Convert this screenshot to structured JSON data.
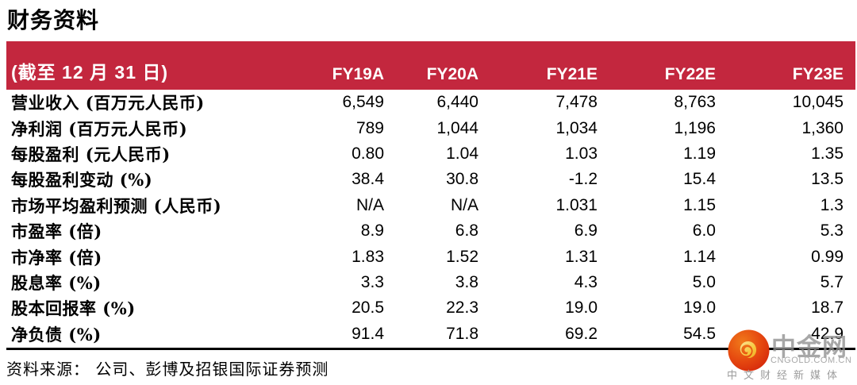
{
  "page": {
    "title": "财务资料",
    "source_note": "资料来源：  公司、彭博及招银国际证券预测"
  },
  "table": {
    "header": {
      "label": "(截至 12 月 31 日)",
      "columns": [
        "FY19A",
        "FY20A",
        "FY21E",
        "FY22E",
        "FY23E"
      ]
    },
    "rows": [
      {
        "label": "营业收入 (百万元人民币)",
        "values": [
          "6,549",
          "6,440",
          "7,478",
          "8,763",
          "10,045"
        ]
      },
      {
        "label": "净利润 (百万元人民币)",
        "values": [
          "789",
          "1,044",
          "1,034",
          "1,196",
          "1,360"
        ]
      },
      {
        "label": "每股盈利 (元人民币)",
        "values": [
          "0.80",
          "1.04",
          "1.03",
          "1.19",
          "1.35"
        ]
      },
      {
        "label": "每股盈利变动 (%)",
        "values": [
          "38.4",
          "30.8",
          "-1.2",
          "15.4",
          "13.5"
        ]
      },
      {
        "label": "市场平均盈利预测 (人民币)",
        "values": [
          "N/A",
          "N/A",
          "1.031",
          "1.15",
          "1.3"
        ]
      },
      {
        "label": "市盈率 (倍)",
        "values": [
          "8.9",
          "6.8",
          "6.9",
          "6.0",
          "5.3"
        ]
      },
      {
        "label": "市净率 (倍)",
        "values": [
          "1.83",
          "1.52",
          "1.31",
          "1.14",
          "0.99"
        ]
      },
      {
        "label": "股息率 (%)",
        "values": [
          "3.3",
          "3.8",
          "4.3",
          "5.0",
          "5.7"
        ]
      },
      {
        "label": "股本回报率 (%)",
        "values": [
          "20.5",
          "22.3",
          "19.0",
          "19.0",
          "18.7"
        ]
      },
      {
        "label": "净负债 (%)",
        "values": [
          "91.4",
          "71.8",
          "69.2",
          "54.5",
          "42.9"
        ]
      }
    ]
  },
  "watermark": {
    "name": "中金网",
    "url": "CNGOLD.COM.CN",
    "tagline": "中文财经新媒体",
    "logo_icon": "cngold-cloud-icon"
  },
  "colors": {
    "header_red": "#C3273E",
    "text_black": "#000000",
    "watermark_gray": "#9C9C9C",
    "logo_orange_outer": "#E1330D",
    "logo_orange_inner": "#F07A1A",
    "logo_gold": "#F6C93E"
  }
}
